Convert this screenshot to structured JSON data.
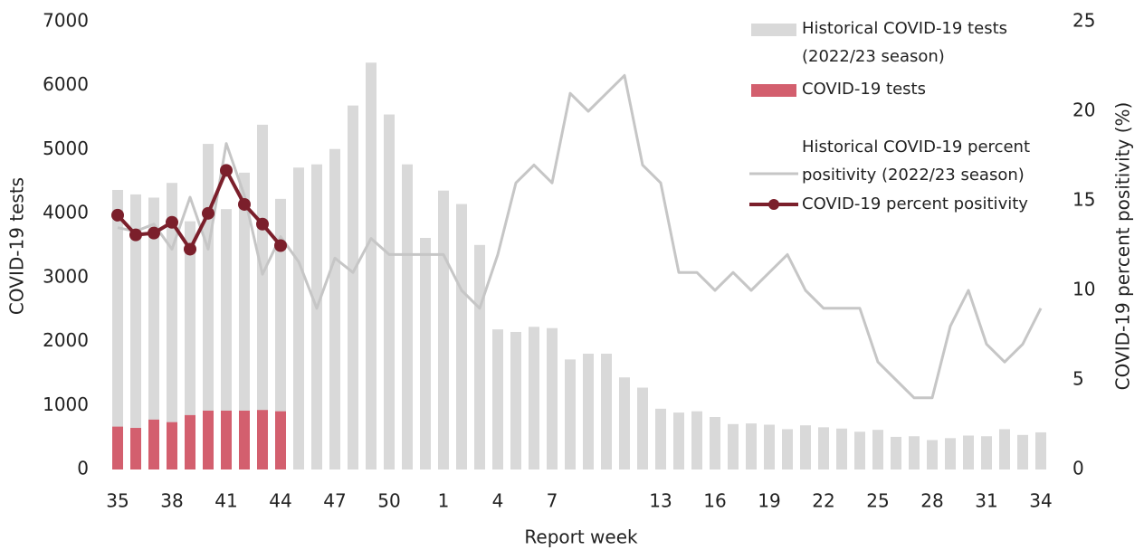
{
  "chart_data": {
    "type": "bar",
    "x_label": "Report week",
    "y_label": "COVID-19 tests",
    "y2_label": "COVID-19 percent positivity (%)",
    "categories": [
      35,
      null,
      null,
      38,
      null,
      null,
      41,
      null,
      null,
      44,
      null,
      null,
      47,
      null,
      null,
      50,
      null,
      null,
      1,
      null,
      null,
      4,
      null,
      null,
      7,
      null,
      null,
      null,
      null,
      null,
      13,
      null,
      null,
      16,
      null,
      null,
      19,
      null,
      null,
      22,
      null,
      null,
      25,
      null,
      null,
      28,
      null,
      null,
      31,
      null,
      null,
      34
    ],
    "ylim": [
      0,
      7000
    ],
    "yticks": [
      0,
      1000,
      2000,
      3000,
      4000,
      5000,
      6000,
      7000
    ],
    "y2lim": [
      0,
      25
    ],
    "y2ticks": [
      0,
      5,
      10,
      15,
      20,
      25
    ],
    "legend": "top-right",
    "series": [
      {
        "name": "Historical COVID-19 tests (2022/23 season)",
        "type": "bar",
        "color": "#d9d9d9",
        "values": [
          4370,
          4300,
          4250,
          4480,
          3880,
          5090,
          4070,
          4640,
          5390,
          4230,
          4720,
          4770,
          5010,
          5690,
          6360,
          5550,
          4770,
          3620,
          4360,
          4150,
          3510,
          2190,
          2150,
          2230,
          2210,
          1720,
          1810,
          1810,
          1440,
          1280,
          950,
          890,
          910,
          820,
          710,
          720,
          700,
          630,
          690,
          660,
          640,
          590,
          620,
          510,
          520,
          460,
          490,
          530,
          520,
          630,
          540,
          580
        ]
      },
      {
        "name": "COVID-19 tests",
        "type": "bar",
        "color": "#d35f6e",
        "values": [
          670,
          650,
          780,
          740,
          850,
          920,
          920,
          920,
          930,
          910,
          null,
          null,
          null,
          null,
          null,
          null,
          null,
          null,
          null,
          null,
          null,
          null,
          null,
          null,
          null,
          null,
          null,
          null,
          null,
          null,
          null,
          null,
          null,
          null,
          null,
          null,
          null,
          null,
          null,
          null,
          null,
          null,
          null,
          null,
          null,
          null,
          null,
          null,
          null,
          null,
          null,
          null
        ]
      },
      {
        "name": "Historical COVID-19 percent positivity (2022/23 season)",
        "type": "line",
        "axis": "y2",
        "color": "#c6c6c6",
        "values": [
          13.5,
          13.3,
          13.7,
          12.3,
          15.2,
          12.3,
          18.2,
          15.3,
          10.9,
          13.0,
          11.6,
          9,
          11.8,
          11,
          12.9,
          12,
          12,
          12,
          12,
          10,
          9,
          12,
          16,
          17,
          16,
          21,
          20,
          21,
          22,
          17,
          16,
          11,
          11,
          10,
          11,
          10,
          11,
          12,
          10,
          9,
          9,
          9,
          6,
          5,
          4,
          4,
          8,
          10,
          7,
          6,
          7,
          9
        ]
      },
      {
        "name": "COVID-19 percent positivity",
        "type": "line",
        "axis": "y2",
        "color": "#7b1f2b",
        "markers": true,
        "values": [
          14.2,
          13.1,
          13.2,
          13.8,
          12.3,
          14.3,
          16.7,
          14.8,
          13.7,
          12.5,
          null,
          null,
          null,
          null,
          null,
          null,
          null,
          null,
          null,
          null,
          null,
          null,
          null,
          null,
          null,
          null,
          null,
          null,
          null,
          null,
          null,
          null,
          null,
          null,
          null,
          null,
          null,
          null,
          null,
          null,
          null,
          null,
          null,
          null,
          null,
          null,
          null,
          null,
          null,
          null,
          null,
          null
        ]
      }
    ]
  }
}
